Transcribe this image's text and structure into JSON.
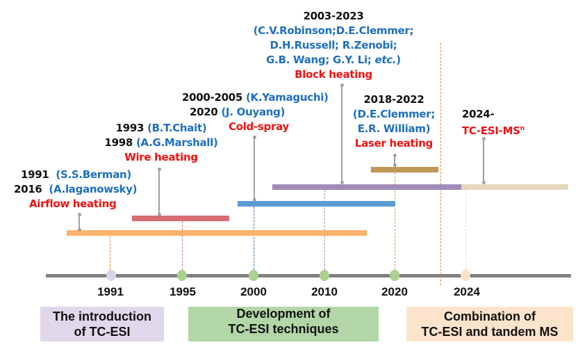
{
  "groups": [
    {
      "l1_year": "1991",
      "l1_name": "(S.S.Berman)",
      "l2_year": "2016",
      "l2_name": "(A.laganowsky)",
      "method": "Airflow heating"
    },
    {
      "l1_year": "1993",
      "l1_name": "(B.T.Chait)",
      "l2_year": "1998",
      "l2_name": "(A.G.Marshall)",
      "method": "Wire heating"
    },
    {
      "l1_year": "2000-2005",
      "l1_name": "(K.Yamaguchi)",
      "l2_year": "2020",
      "l2_name": "(J. Ouyang)",
      "method": "Cold-spray"
    },
    {
      "year": "2003-2023",
      "names1": "(C.V.Robinson;D.E.Clemmer;",
      "names2": "D.H.Russell; R.Zenobi;",
      "names3": "G.B. Wang; G.Y. Li;",
      "names3_italic": "etc.",
      "names3_end": ")",
      "method": "Block heating"
    },
    {
      "year": "2018-2022",
      "names1": "(D.E.Clemmer;",
      "names2": "E.R. William)",
      "method": "Laser heating"
    },
    {
      "year": "2024-",
      "method": "TC-ESI-MS",
      "method_sup": "n"
    }
  ],
  "axis_years": [
    "1991",
    "1995",
    "2000",
    "2010",
    "2020",
    "2024"
  ],
  "phases": [
    {
      "label": "The introduction of TC-ESI",
      "line1": "The introduction",
      "line2": "of TC-ESI",
      "color": "#e0d8ea"
    },
    {
      "label": "Development of TC-ESI techniques",
      "line1": "Development of",
      "line2": "TC-ESI techniques",
      "color": "#b3d6a8"
    },
    {
      "label": "Combination of TC-ESI and tandem MS",
      "line1": "Combination of",
      "line2": "TC-ESI and tandem MS",
      "color": "#fce4cc"
    }
  ],
  "colors": {
    "airflow": "#f8b26a",
    "wire": "#d86b74",
    "cold_spray": "#5b9bd5",
    "block": "#a08bb9",
    "laser": "#c09656",
    "ms": "#e6d6bd",
    "year_text": "#111111",
    "name_text": "#1f6fbf",
    "method_text": "#ee1111"
  }
}
